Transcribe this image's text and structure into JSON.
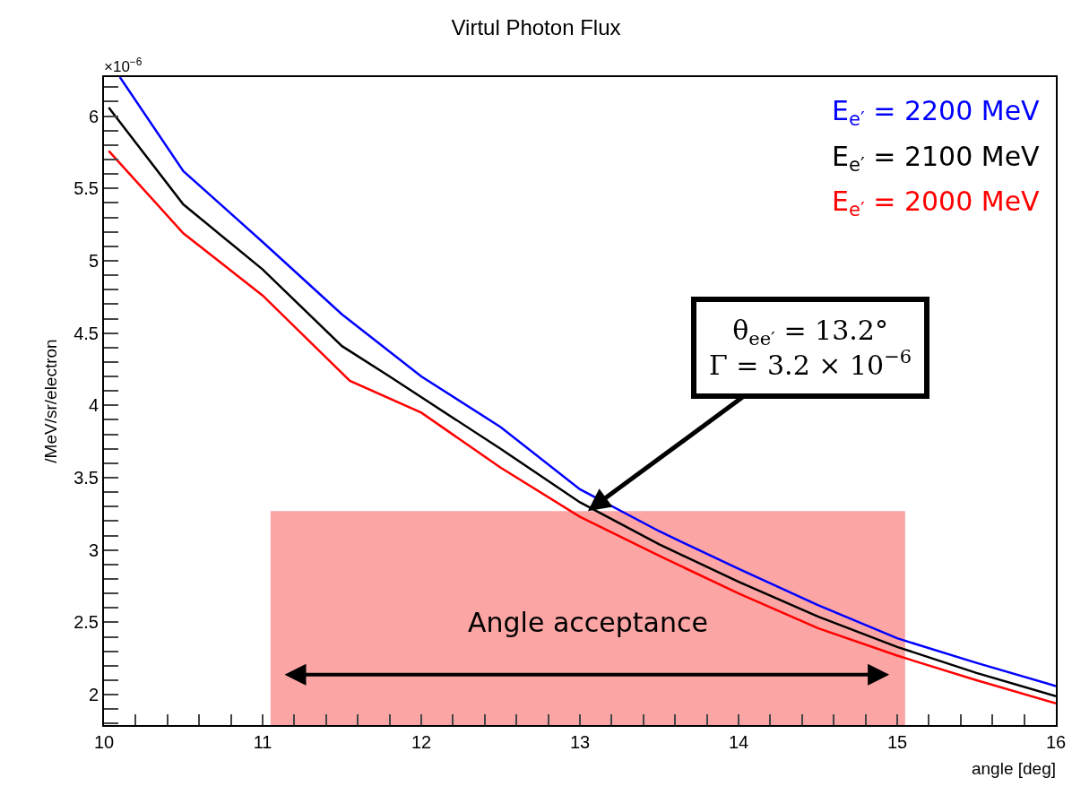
{
  "chart_data": {
    "type": "line",
    "title": "Virtul Photon Flux",
    "xlabel": "angle [deg]",
    "ylabel": "/MeV/sr/electron",
    "marker": "none",
    "line_style": "solid",
    "grid": false,
    "legend": "top right",
    "xlim": [
      10,
      16
    ],
    "ylim": [
      1.79,
      6.27
    ],
    "xticks": [
      10,
      {
        "value": 10.2,
        "label": null
      },
      {
        "value": 10.4,
        "label": null
      },
      {
        "value": 10.6,
        "label": null
      },
      {
        "value": 10.8,
        "label": null
      },
      11,
      {
        "value": 11.2,
        "label": null
      },
      {
        "value": 11.4,
        "label": null
      },
      {
        "value": 11.6,
        "label": null
      },
      {
        "value": 11.8,
        "label": null
      },
      12,
      {
        "value": 12.2,
        "label": null
      },
      {
        "value": 12.4,
        "label": null
      },
      {
        "value": 12.6,
        "label": null
      },
      {
        "value": 12.8,
        "label": null
      },
      13,
      {
        "value": 13.2,
        "label": null
      },
      {
        "value": 13.4,
        "label": null
      },
      {
        "value": 13.6,
        "label": null
      },
      {
        "value": 13.8,
        "label": null
      },
      14,
      {
        "value": 14.2,
        "label": null
      },
      {
        "value": 14.4,
        "label": null
      },
      {
        "value": 14.6,
        "label": null
      },
      {
        "value": 14.8,
        "label": null
      },
      15,
      {
        "value": 15.2,
        "label": null
      },
      {
        "value": 15.4,
        "label": null
      },
      {
        "value": 15.6,
        "label": null
      },
      {
        "value": 15.8,
        "label": null
      },
      16
    ],
    "yticks": [
      {
        "value": 1.8,
        "label": null
      },
      {
        "value": 1.9,
        "label": null
      },
      2,
      {
        "value": 2.1,
        "label": null
      },
      {
        "value": 2.2,
        "label": null
      },
      {
        "value": 2.3,
        "label": null
      },
      {
        "value": 2.4,
        "label": null
      },
      2.5,
      {
        "value": 2.6,
        "label": null
      },
      {
        "value": 2.7,
        "label": null
      },
      {
        "value": 2.8,
        "label": null
      },
      {
        "value": 2.9,
        "label": null
      },
      3,
      {
        "value": 3.1,
        "label": null
      },
      {
        "value": 3.2,
        "label": null
      },
      {
        "value": 3.3,
        "label": null
      },
      {
        "value": 3.4,
        "label": null
      },
      3.5,
      {
        "value": 3.6,
        "label": null
      },
      {
        "value": 3.7,
        "label": null
      },
      {
        "value": 3.8,
        "label": null
      },
      {
        "value": 3.9,
        "label": null
      },
      4,
      {
        "value": 4.1,
        "label": null
      },
      {
        "value": 4.2,
        "label": null
      },
      {
        "value": 4.3,
        "label": null
      },
      {
        "value": 4.4,
        "label": null
      },
      4.5,
      {
        "value": 4.6,
        "label": null
      },
      {
        "value": 4.7,
        "label": null
      },
      {
        "value": 4.8,
        "label": null
      },
      {
        "value": 4.9,
        "label": null
      },
      5,
      {
        "value": 5.1,
        "label": null
      },
      {
        "value": 5.2,
        "label": null
      },
      {
        "value": 5.3,
        "label": null
      },
      {
        "value": 5.4,
        "label": null
      },
      5.5,
      {
        "value": 5.6,
        "label": null
      },
      {
        "value": 5.7,
        "label": null
      },
      {
        "value": 5.8,
        "label": null
      },
      {
        "value": 5.9,
        "label": null
      },
      6,
      {
        "value": 6.1,
        "label": null
      },
      {
        "value": 6.2,
        "label": null
      }
    ],
    "series": [
      {
        "name": "E$_{e′}$ = 2200 MeV",
        "color": "#0000ff",
        "x": [
          10.1,
          10.5,
          11,
          11.5,
          12,
          12.5,
          13,
          13.5,
          14,
          14.5,
          15,
          15.5,
          16
        ],
        "values": [
          6.27,
          5.62,
          5.13,
          4.63,
          4.2,
          3.85,
          3.42,
          3.13,
          2.87,
          2.62,
          2.39,
          2.22,
          2.06
        ]
      },
      {
        "name": "E$_{e′}$ = 2100 MeV",
        "color": "#000000",
        "x": [
          10.03,
          10.5,
          11,
          11.5,
          11.8,
          12.5,
          13,
          13.5,
          14,
          14.5,
          15,
          15.5,
          16
        ],
        "values": [
          6.06,
          5.39,
          4.94,
          4.41,
          4.2,
          3.7,
          3.33,
          3.04,
          2.78,
          2.54,
          2.33,
          2.15,
          1.99
        ]
      },
      {
        "name": "E$_{e′}$ = 2000 MeV",
        "color": "#ff0000",
        "x": [
          10.03,
          10.5,
          11,
          11.55,
          12,
          12.5,
          13,
          13.5,
          14,
          14.5,
          15,
          15.5,
          16
        ],
        "values": [
          5.76,
          5.19,
          4.76,
          4.17,
          3.95,
          3.57,
          3.23,
          2.96,
          2.7,
          2.46,
          2.27,
          2.1,
          1.94
        ]
      }
    ],
    "bands": [
      {
        "axis": "x",
        "from": 11.05,
        "to": 15.05,
        "label": "Angle acceptance",
        "color": "#fca5a5"
      }
    ],
    "annotations": [
      "×10$^{−6}$",
      {
        "text": "θ$_{ee′}$ = 13.2°\nΓ = 3.2 × 10$^{−6}$",
        "x": 13.05,
        "y": 3.27
      }
    ]
  }
}
